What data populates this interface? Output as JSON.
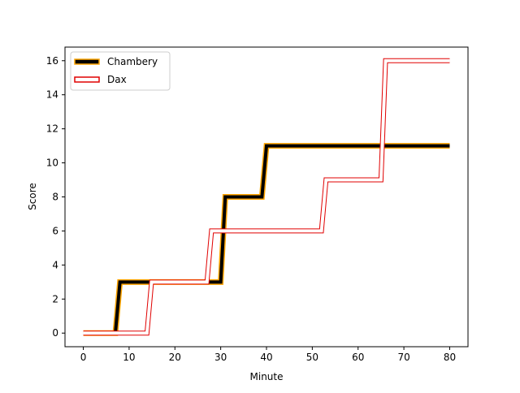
{
  "chart_data": {
    "type": "line",
    "title": "",
    "xlabel": "Minute",
    "ylabel": "Score",
    "xlim": [
      -4,
      84
    ],
    "ylim": [
      -0.8,
      16.8
    ],
    "xticks": [
      0,
      10,
      20,
      30,
      40,
      50,
      60,
      70,
      80
    ],
    "yticks": [
      0,
      2,
      4,
      6,
      8,
      10,
      12,
      14,
      16
    ],
    "grid": false,
    "legend_position": "top-left",
    "series": [
      {
        "name": "Chambery",
        "color": "#000000",
        "edge_color": "#ffa500",
        "style": "thick-outlined",
        "points": [
          [
            0,
            0
          ],
          [
            7,
            0
          ],
          [
            8,
            3
          ],
          [
            29,
            3
          ],
          [
            30,
            3
          ],
          [
            31,
            8
          ],
          [
            39,
            8
          ],
          [
            40,
            11
          ],
          [
            80,
            11
          ]
        ]
      },
      {
        "name": "Dax",
        "color": "#ffffff",
        "edge_color": "#e00000",
        "style": "hollow-outlined",
        "points": [
          [
            0,
            0
          ],
          [
            13.9,
            0
          ],
          [
            14.9,
            3
          ],
          [
            27,
            3
          ],
          [
            28,
            6
          ],
          [
            52,
            6
          ],
          [
            53,
            9
          ],
          [
            65,
            9
          ],
          [
            66,
            16
          ],
          [
            80,
            16
          ]
        ]
      }
    ]
  }
}
